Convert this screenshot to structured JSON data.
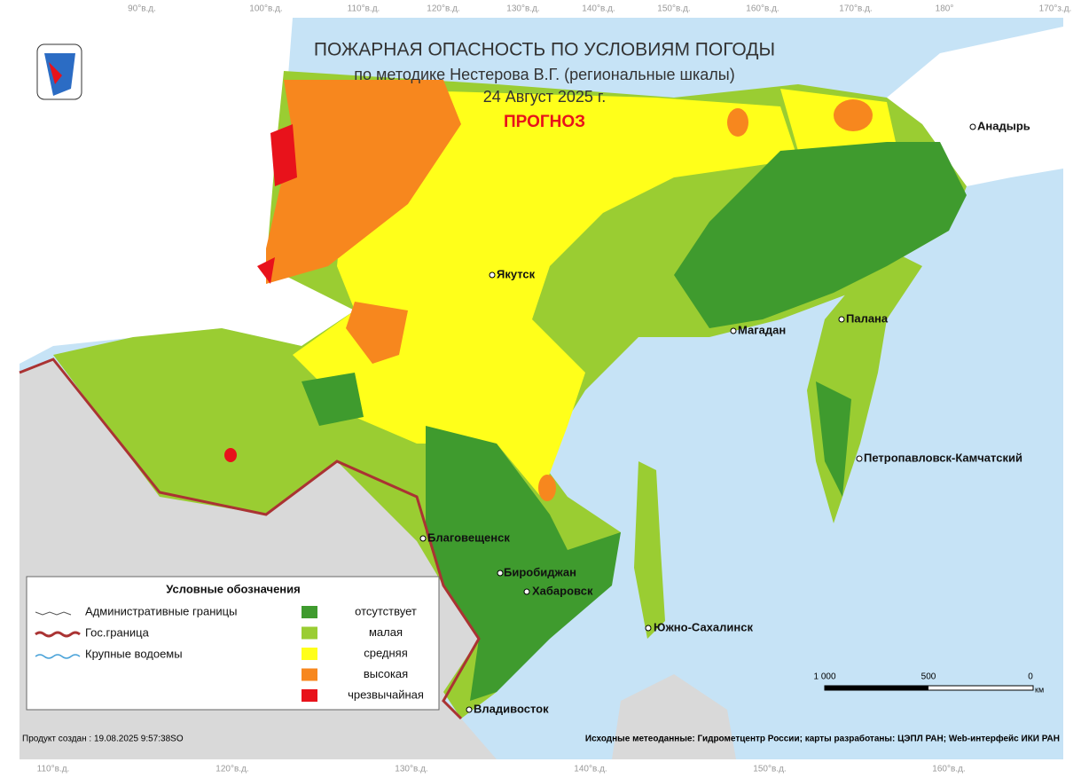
{
  "header": {
    "title": "ПОЖАРНАЯ ОПАСНОСТЬ ПО УСЛОВИЯМ ПОГОДЫ",
    "subtitle": "по методике Нестерова В.Г. (региональные шкалы)",
    "date": "24 Август 2025 г.",
    "forecast": "ПРОГНОЗ"
  },
  "cities": [
    "Анадырь",
    "Якутск",
    "Магадан",
    "Палана",
    "Петропавловск-Камчатский",
    "Благовещенск",
    "Биробиджан",
    "Хабаровск",
    "Южно-Сахалинск",
    "Владивосток"
  ],
  "graticule": {
    "top": [
      "90°в.д.",
      "100°в.д.",
      "110°в.д.",
      "120°в.д.",
      "130°в.д.",
      "140°в.д.",
      "150°в.д.",
      "160°в.д.",
      "170°в.д.",
      "180°",
      "170°з.д."
    ],
    "bottom": [
      "110°в.д.",
      "120°в.д.",
      "130°в.д.",
      "140°в.д.",
      "150°в.д.",
      "160°в.д."
    ]
  },
  "legend": {
    "title": "Условные обозначения",
    "lines": [
      "Административные границы",
      "Гос.граница",
      "Крупные водоемы"
    ],
    "classes": [
      {
        "label": "отсутствует",
        "color": "#3f9b2e"
      },
      {
        "label": "малая",
        "color": "#9acd32"
      },
      {
        "label": "средняя",
        "color": "#ffff1a"
      },
      {
        "label": "высокая",
        "color": "#f7871e"
      },
      {
        "label": "чрезвычайная",
        "color": "#e8121b"
      }
    ]
  },
  "scale": {
    "ticks": [
      "1 000",
      "500",
      "0"
    ],
    "unit": "км"
  },
  "footer": {
    "created": "Продукт создан : 19.08.2025 9:57:38SO",
    "credits": "Исходные метеоданные: Гидрометцентр России; карты разработаны: ЦЭПЛ РАН; Web-интерфейс ИКИ РАН"
  }
}
